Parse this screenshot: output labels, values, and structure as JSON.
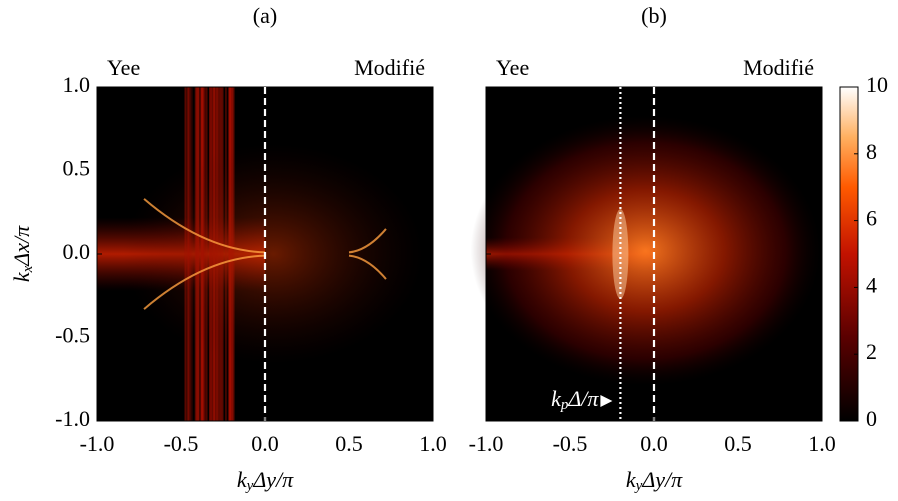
{
  "chart_data": [
    {
      "type": "heatmap",
      "title": "(a)",
      "xlabel": "k_yΔy/π",
      "ylabel": "k_xΔx/π",
      "xlim": [
        -1,
        1
      ],
      "ylim": [
        -1,
        1
      ],
      "xticks": [
        {
          "value": -1,
          "label": "-1.0"
        },
        -0.5,
        {
          "value": 0,
          "label": "0.0"
        },
        0.5,
        {
          "value": 1,
          "label": "1.0"
        }
      ],
      "yticks": [
        {
          "value": -1,
          "label": "-1.0"
        },
        -0.5,
        {
          "value": 0,
          "label": "0.0"
        },
        0.5,
        {
          "value": 1,
          "label": "1.0"
        }
      ],
      "annotations": [
        "Yee",
        "Modifié"
      ],
      "vlines": [
        {
          "x": 0,
          "style": "dashed"
        }
      ]
    },
    {
      "type": "heatmap",
      "title": "(b)",
      "xlabel": "k_yΔy/π",
      "xlim": [
        -1,
        1
      ],
      "ylim": [
        -1,
        1
      ],
      "xticks": [
        {
          "value": -1,
          "label": "-1.0"
        },
        -0.5,
        {
          "value": 0,
          "label": "0.0"
        },
        0.5,
        {
          "value": 1,
          "label": "1.0"
        }
      ],
      "annotations": [
        "Yee",
        "Modifié"
      ],
      "vlines": [
        {
          "x": -0.2,
          "style": "dotted"
        },
        {
          "x": 0,
          "style": "dashed"
        }
      ],
      "pointer": {
        "label": "k_pΔ/π",
        "x": -0.2,
        "y": -0.88
      },
      "clim": [
        0,
        10
      ],
      "cticks": [
        0,
        2,
        4,
        6,
        8,
        10
      ]
    }
  ]
}
